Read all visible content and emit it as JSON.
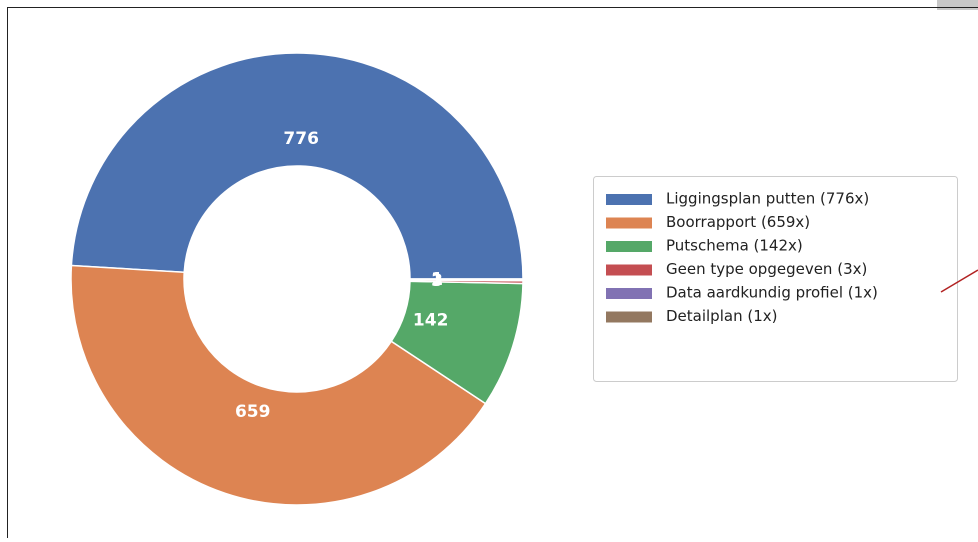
{
  "chart_data": {
    "type": "donut",
    "categories": [
      "Liggingsplan putten (776x)",
      "Boorrapport (659x)",
      "Putschema (142x)",
      "Geen type opgegeven (3x)",
      "Data aardkundig profiel (1x)",
      "Detailplan (1x)"
    ],
    "values": [
      776,
      659,
      142,
      3,
      1,
      1
    ],
    "colors": [
      "#4c72b0",
      "#dd8452",
      "#55a868",
      "#c44e52",
      "#8172b3",
      "#937860"
    ],
    "legend": "right"
  }
}
